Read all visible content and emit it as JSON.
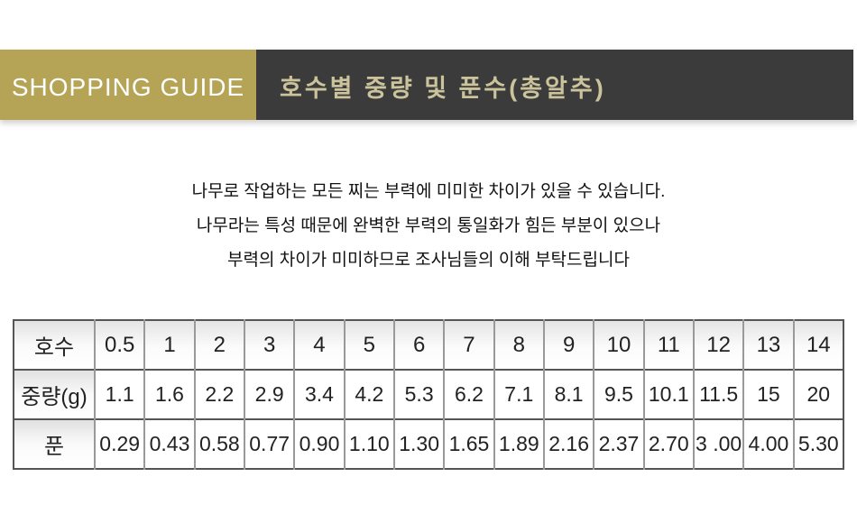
{
  "colors": {
    "gold": "#b5a455",
    "dark_bar": "#3b3b3b",
    "title_text": "#cbc39b"
  },
  "header": {
    "badge_label": "SHOPPING GUIDE",
    "section_title": "호수별 중량 및 푼수(총알추)"
  },
  "description": {
    "lines": [
      "나무로 작업하는 모든 찌는 부력에 미미한 차이가 있을 수 있습니다.",
      "나무라는 특성 때문에 완벽한 부력의 통일화가 힘든 부분이 있으나",
      "부력의 차이가 미미하므로 조사님들의 이해 부탁드립니다"
    ]
  },
  "table": {
    "rows": [
      {
        "label": "호수",
        "is_header": true,
        "values": [
          "0.5",
          "1",
          "2",
          "3",
          "4",
          "5",
          "6",
          "7",
          "8",
          "9",
          "10",
          "11",
          "12",
          "13",
          "14"
        ]
      },
      {
        "label": "중량(g)",
        "is_header": false,
        "values": [
          "1.1",
          "1.6",
          "2.2",
          "2.9",
          "3.4",
          "4.2",
          "5.3",
          "6.2",
          "7.1",
          "8.1",
          "9.5",
          "10.1",
          "11.5",
          "15",
          "20"
        ]
      },
      {
        "label": "푼",
        "is_header": false,
        "values": [
          "0.29",
          "0.43",
          "0.58",
          "0.77",
          "0.90",
          "1.10",
          "1.30",
          "1.65",
          "1.89",
          "2.16",
          "2.37",
          "2.70",
          "3 .00",
          "4.00",
          "5.30"
        ]
      }
    ]
  }
}
